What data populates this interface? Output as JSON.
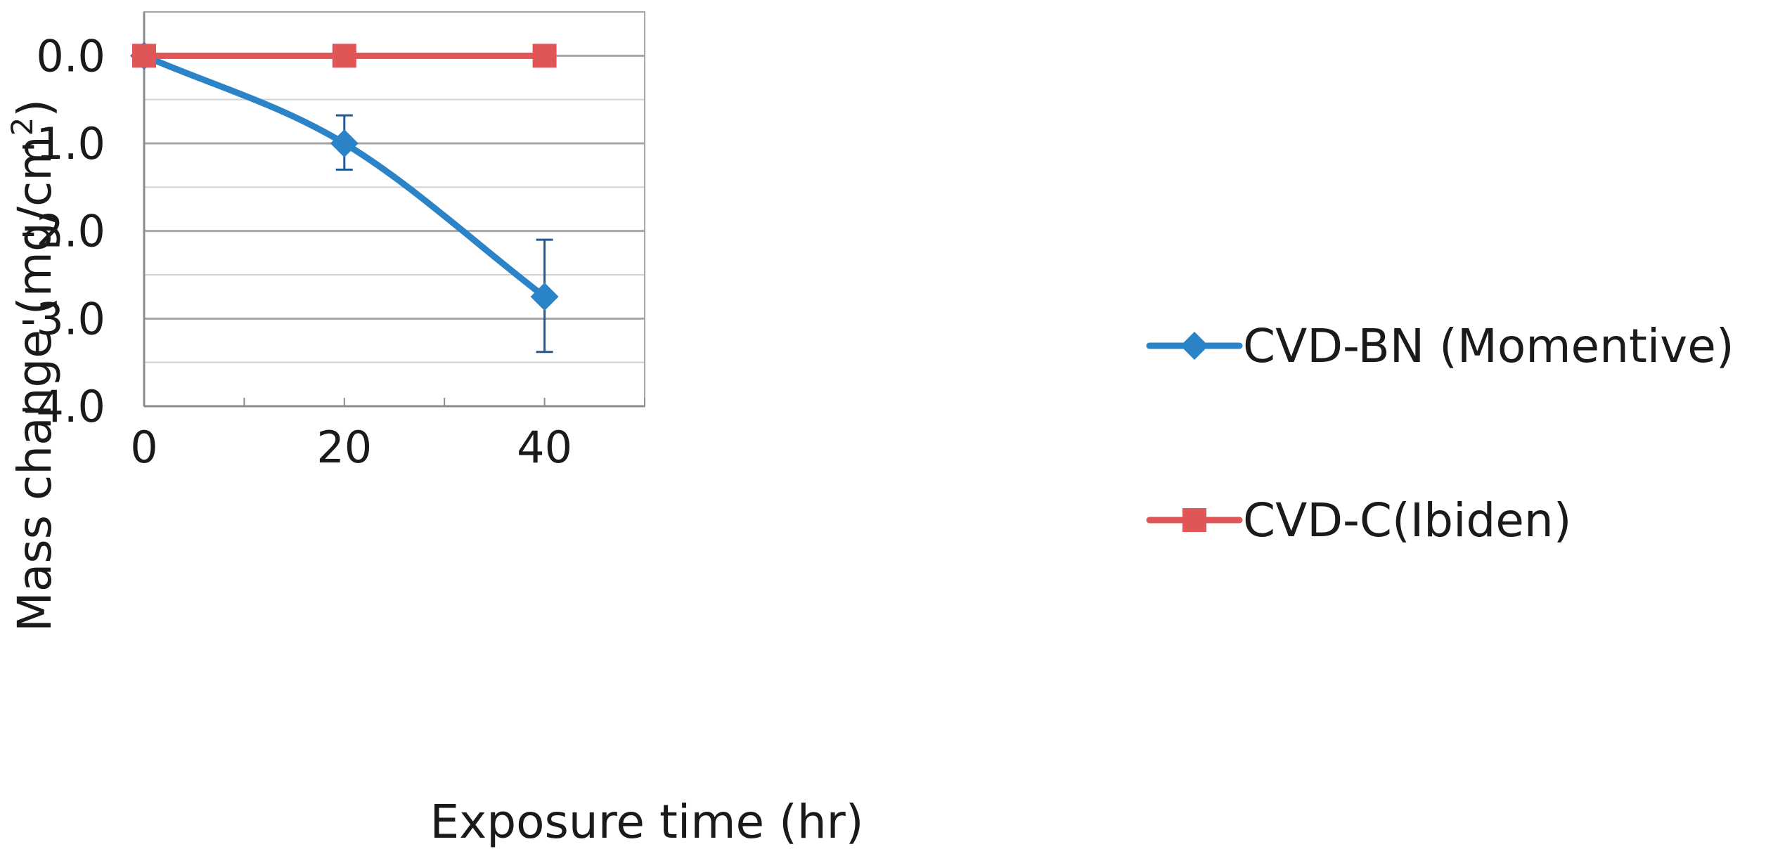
{
  "chart_data": {
    "type": "line",
    "title": "",
    "xlabel": "Exposure time (hr)",
    "ylabel_text": "Mass change (mg/cm",
    "ylabel_sup": "2",
    "ylabel_close": ")",
    "x_ticks": [
      0,
      20,
      40
    ],
    "x_tick_labels": [
      "0",
      "20",
      "40"
    ],
    "y_ticks": [
      0,
      -1,
      -2,
      -3,
      -4
    ],
    "y_tick_labels": [
      "0.0",
      "-1.0",
      "-2.0",
      "-3.0",
      "-4.0"
    ],
    "xlim": [
      0,
      50
    ],
    "ylim": [
      -4,
      0.5
    ],
    "x_minor_step": 10,
    "y_minor_step": 0.5,
    "grid": true,
    "legend_position": "right",
    "series": [
      {
        "name": "CVD-BN (Momentive)",
        "color": "#2b83c8",
        "marker": "diamond",
        "smooth": true,
        "x": [
          0,
          20,
          40
        ],
        "values": [
          0.0,
          -1.0,
          -2.75
        ],
        "error_low": [
          null,
          -1.3,
          -3.38
        ],
        "error_high": [
          null,
          -0.68,
          -2.1
        ],
        "error_color": "#1f5a96"
      },
      {
        "name": "CVD-C(Ibiden)",
        "color": "#e05555",
        "marker": "square",
        "smooth": false,
        "x": [
          0,
          20,
          40
        ],
        "values": [
          0.0,
          0.0,
          0.0
        ]
      }
    ]
  }
}
